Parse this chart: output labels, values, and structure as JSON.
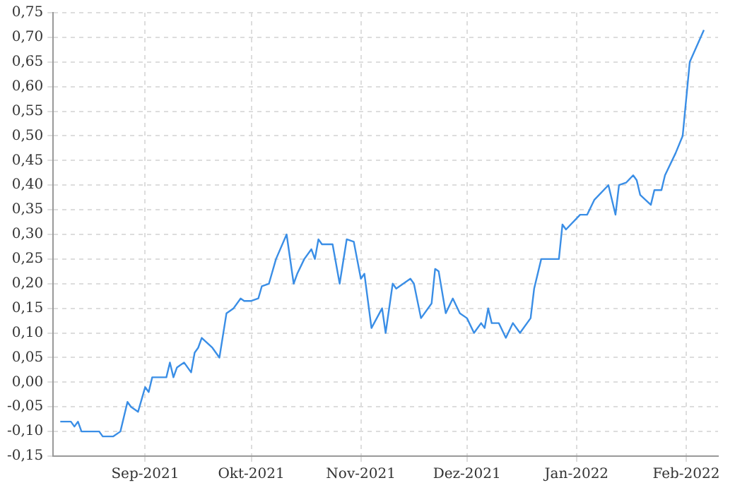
{
  "chart_data": {
    "type": "line",
    "x": [
      "2021-08-08",
      "2021-08-11",
      "2021-08-12",
      "2021-08-13",
      "2021-08-14",
      "2021-08-19",
      "2021-08-20",
      "2021-08-23",
      "2021-08-25",
      "2021-08-27",
      "2021-08-28",
      "2021-08-30",
      "2021-09-01",
      "2021-09-02",
      "2021-09-03",
      "2021-09-07",
      "2021-09-08",
      "2021-09-09",
      "2021-09-10",
      "2021-09-12",
      "2021-09-14",
      "2021-09-15",
      "2021-09-16",
      "2021-09-17",
      "2021-09-20",
      "2021-09-22",
      "2021-09-24",
      "2021-09-26",
      "2021-09-28",
      "2021-09-29",
      "2021-10-01",
      "2021-10-03",
      "2021-10-04",
      "2021-10-06",
      "2021-10-08",
      "2021-10-11",
      "2021-10-13",
      "2021-10-14",
      "2021-10-16",
      "2021-10-18",
      "2021-10-19",
      "2021-10-20",
      "2021-10-21",
      "2021-10-24",
      "2021-10-26",
      "2021-10-28",
      "2021-10-30",
      "2021-11-01",
      "2021-11-02",
      "2021-11-04",
      "2021-11-07",
      "2021-11-08",
      "2021-11-10",
      "2021-11-11",
      "2021-11-13",
      "2021-11-15",
      "2021-11-16",
      "2021-11-18",
      "2021-11-21",
      "2021-11-22",
      "2021-11-23",
      "2021-11-25",
      "2021-11-27",
      "2021-11-29",
      "2021-12-01",
      "2021-12-03",
      "2021-12-05",
      "2021-12-06",
      "2021-12-07",
      "2021-12-08",
      "2021-12-10",
      "2021-12-12",
      "2021-12-14",
      "2021-12-16",
      "2021-12-19",
      "2021-12-20",
      "2021-12-22",
      "2021-12-27",
      "2021-12-28",
      "2021-12-29",
      "2022-01-02",
      "2022-01-04",
      "2022-01-06",
      "2022-01-10",
      "2022-01-12",
      "2022-01-13",
      "2022-01-15",
      "2022-01-17",
      "2022-01-18",
      "2022-01-19",
      "2022-01-22",
      "2022-01-23",
      "2022-01-25",
      "2022-01-26",
      "2022-01-29",
      "2022-01-31",
      "2022-02-02",
      "2022-02-06"
    ],
    "series": [
      {
        "color": "#3a8ee6",
        "values": [
          -0.08,
          -0.08,
          -0.09,
          -0.08,
          -0.1,
          -0.1,
          -0.11,
          -0.11,
          -0.1,
          -0.04,
          -0.05,
          -0.06,
          -0.01,
          -0.02,
          0.01,
          0.01,
          0.04,
          0.01,
          0.03,
          0.04,
          0.02,
          0.06,
          0.07,
          0.09,
          0.07,
          0.05,
          0.14,
          0.15,
          0.17,
          0.165,
          0.165,
          0.17,
          0.195,
          0.2,
          0.25,
          0.3,
          0.2,
          0.22,
          0.25,
          0.27,
          0.25,
          0.29,
          0.28,
          0.28,
          0.2,
          0.29,
          0.285,
          0.21,
          0.22,
          0.11,
          0.15,
          0.1,
          0.2,
          0.19,
          0.2,
          0.21,
          0.2,
          0.13,
          0.16,
          0.23,
          0.225,
          0.14,
          0.17,
          0.14,
          0.13,
          0.1,
          0.12,
          0.11,
          0.15,
          0.12,
          0.12,
          0.09,
          0.12,
          0.1,
          0.13,
          0.19,
          0.25,
          0.25,
          0.32,
          0.31,
          0.34,
          0.34,
          0.37,
          0.4,
          0.34,
          0.4,
          0.405,
          0.42,
          0.41,
          0.38,
          0.36,
          0.39,
          0.39,
          0.42,
          0.465,
          0.5,
          0.65,
          0.715
        ]
      }
    ],
    "xlim": [
      "2021-08-06",
      "2022-02-10"
    ],
    "xticks": [
      {
        "value": "2021-09-01",
        "label": "Sep-2021"
      },
      {
        "value": "2021-10-01",
        "label": "Okt-2021"
      },
      {
        "value": "2021-11-01",
        "label": "Nov-2021"
      },
      {
        "value": "2021-12-01",
        "label": "Dez-2021"
      },
      {
        "value": "2022-01-01",
        "label": "Jan-2022"
      },
      {
        "value": "2022-02-01",
        "label": "Feb-2022"
      }
    ],
    "ylim": [
      -0.15,
      0.75
    ],
    "yticks": [
      {
        "value": -0.15,
        "label": "-0,15"
      },
      {
        "value": -0.1,
        "label": "-0,10"
      },
      {
        "value": -0.05,
        "label": "-0,05"
      },
      {
        "value": 0,
        "label": "0,00"
      },
      {
        "value": 0.05,
        "label": "0,05"
      },
      {
        "value": 0.1,
        "label": "0,10"
      },
      {
        "value": 0.15,
        "label": "0,15"
      },
      {
        "value": 0.2,
        "label": "0,20"
      },
      {
        "value": 0.25,
        "label": "0,25"
      },
      {
        "value": 0.3,
        "label": "0,30"
      },
      {
        "value": 0.35,
        "label": "0,35"
      },
      {
        "value": 0.4,
        "label": "0,40"
      },
      {
        "value": 0.45,
        "label": "0,45"
      },
      {
        "value": 0.5,
        "label": "0,50"
      },
      {
        "value": 0.55,
        "label": "0,55"
      },
      {
        "value": 0.6,
        "label": "0,60"
      },
      {
        "value": 0.65,
        "label": "0,65"
      },
      {
        "value": 0.7,
        "label": "0,70"
      },
      {
        "value": 0.75,
        "label": "0,75"
      }
    ],
    "grid": true,
    "legend": false,
    "marker": "none",
    "line_style": "solid"
  }
}
